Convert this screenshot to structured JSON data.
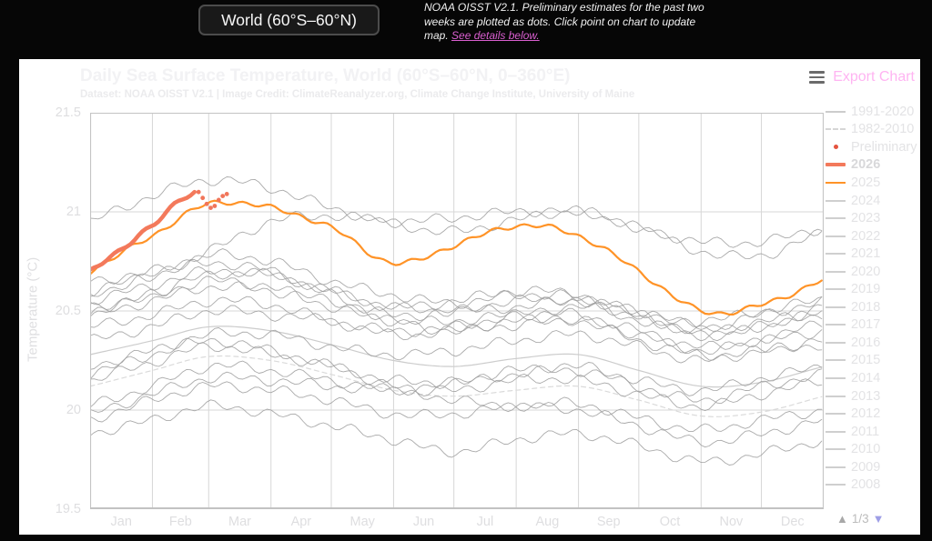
{
  "topbar": {
    "region_selector": {
      "label": "World (60°S–60°N)"
    },
    "note": {
      "text": "NOAA OISST V2.1. Preliminary estimates for the past two weeks are plotted as dots. Click point on chart to update map. ",
      "link": "See details below."
    }
  },
  "panel": {
    "export": {
      "label": "Export Chart"
    },
    "legend": {
      "pagination": {
        "up": "▲",
        "page": "1/3",
        "down": "▼"
      },
      "items": [
        {
          "label": "1991-2020",
          "swatch": "line",
          "color": "#cccccc"
        },
        {
          "label": "1982-2010",
          "swatch": "dash",
          "color": "#d6d6d6"
        },
        {
          "label": "Preliminary",
          "swatch": "dot",
          "color": "#e4533f"
        },
        {
          "label": "2026",
          "swatch": "thick",
          "color": "#f3795b",
          "bold": true
        },
        {
          "label": "2025",
          "swatch": "line",
          "color": "#ff9327"
        },
        {
          "label": "2024",
          "swatch": "line",
          "color": "#cfcfcf"
        },
        {
          "label": "2023",
          "swatch": "line",
          "color": "#cfcfcf"
        },
        {
          "label": "2022",
          "swatch": "line",
          "color": "#cfcfcf"
        },
        {
          "label": "2021",
          "swatch": "line",
          "color": "#cfcfcf"
        },
        {
          "label": "2020",
          "swatch": "line",
          "color": "#cfcfcf"
        },
        {
          "label": "2019",
          "swatch": "line",
          "color": "#cfcfcf"
        },
        {
          "label": "2018",
          "swatch": "line",
          "color": "#cfcfcf"
        },
        {
          "label": "2017",
          "swatch": "line",
          "color": "#cfcfcf"
        },
        {
          "label": "2016",
          "swatch": "line",
          "color": "#cfcfcf"
        },
        {
          "label": "2015",
          "swatch": "line",
          "color": "#cfcfcf"
        },
        {
          "label": "2014",
          "swatch": "line",
          "color": "#cfcfcf"
        },
        {
          "label": "2013",
          "swatch": "line",
          "color": "#cfcfcf"
        },
        {
          "label": "2012",
          "swatch": "line",
          "color": "#cfcfcf"
        },
        {
          "label": "2011",
          "swatch": "line",
          "color": "#cfcfcf"
        },
        {
          "label": "2010",
          "swatch": "line",
          "color": "#cfcfcf"
        },
        {
          "label": "2009",
          "swatch": "line",
          "color": "#cfcfcf"
        },
        {
          "label": "2008",
          "swatch": "line",
          "color": "#cfcfcf"
        }
      ]
    }
  },
  "chart_data": {
    "type": "line",
    "title": "Daily Sea Surface Temperature, World (60°S–60°N, 0–360°E)",
    "subtitle": "Dataset: NOAA OISST V2.1 | Image Credit: ClimateReanalyzer.org, Climate Change Institute, University of Maine",
    "ylabel": "Temperature (°C)",
    "ylim": [
      19.5,
      21.5
    ],
    "yticks": [
      "21.5",
      "21",
      "20.5",
      "20",
      "19.5"
    ],
    "x_categories": [
      "Jan",
      "Feb",
      "Mar",
      "Apr",
      "May",
      "Jun",
      "Jul",
      "Aug",
      "Sep",
      "Oct",
      "Nov",
      "Dec"
    ],
    "month_start_days": [
      0,
      31,
      59,
      90,
      120,
      151,
      181,
      212,
      243,
      273,
      304,
      334,
      365
    ],
    "days_in_year": 365,
    "grid": true,
    "legend_position": "right",
    "series": [
      {
        "name": "1982-2010",
        "type": "climatology",
        "dash": true,
        "color": "#dadada",
        "width": 1.2,
        "values": [
          20.12,
          20.2,
          20.27,
          20.25,
          20.18,
          20.1,
          20.07,
          20.1,
          20.12,
          20.05,
          19.97,
          19.99,
          20.07
        ]
      },
      {
        "name": "1991-2020",
        "type": "climatology",
        "dash": false,
        "color": "#cccccc",
        "width": 1.2,
        "values": [
          20.28,
          20.35,
          20.42,
          20.4,
          20.33,
          20.25,
          20.22,
          20.26,
          20.28,
          20.2,
          20.12,
          20.14,
          20.22
        ]
      },
      {
        "name": "2008",
        "type": "year",
        "color": "#9b9b9b",
        "values": [
          19.88,
          19.95,
          20.02,
          19.98,
          19.92,
          19.85,
          19.79,
          19.85,
          19.88,
          19.82,
          19.74,
          19.78,
          19.85
        ]
      },
      {
        "name": "2009",
        "type": "year",
        "color": "#9b9b9b",
        "values": [
          19.98,
          20.08,
          20.16,
          20.15,
          20.12,
          20.1,
          20.14,
          20.2,
          20.22,
          20.15,
          20.1,
          20.16,
          20.22
        ]
      },
      {
        "name": "2010",
        "type": "year",
        "color": "#9b9b9b",
        "values": [
          20.18,
          20.28,
          20.35,
          20.3,
          20.22,
          20.12,
          20.05,
          20.02,
          20.0,
          19.92,
          19.84,
          19.88,
          19.95
        ]
      },
      {
        "name": "2011",
        "type": "year",
        "color": "#9b9b9b",
        "values": [
          19.95,
          20.05,
          20.12,
          20.1,
          20.05,
          19.98,
          19.98,
          20.02,
          20.03,
          19.96,
          19.9,
          19.95,
          20.0
        ]
      },
      {
        "name": "2012",
        "type": "year",
        "color": "#9b9b9b",
        "values": [
          20.02,
          20.12,
          20.22,
          20.2,
          20.15,
          20.1,
          20.1,
          20.15,
          20.15,
          20.08,
          20.02,
          20.08,
          20.15
        ]
      },
      {
        "name": "2013",
        "type": "year",
        "color": "#9b9b9b",
        "values": [
          20.15,
          20.24,
          20.32,
          20.28,
          20.22,
          20.15,
          20.14,
          20.18,
          20.2,
          20.12,
          20.05,
          20.12,
          20.18
        ]
      },
      {
        "name": "2014",
        "type": "year",
        "color": "#9b9b9b",
        "values": [
          20.22,
          20.3,
          20.38,
          20.38,
          20.32,
          20.28,
          20.3,
          20.35,
          20.38,
          20.32,
          20.25,
          20.3,
          20.33
        ]
      },
      {
        "name": "2015",
        "type": "year",
        "color": "#9b9b9b",
        "values": [
          20.35,
          20.42,
          20.5,
          20.48,
          20.45,
          20.4,
          20.42,
          20.48,
          20.52,
          20.48,
          20.45,
          20.5,
          20.56
        ]
      },
      {
        "name": "2016",
        "type": "year",
        "color": "#9b9b9b",
        "values": [
          20.6,
          20.68,
          20.74,
          20.7,
          20.58,
          20.45,
          20.4,
          20.43,
          20.45,
          20.35,
          20.28,
          20.3,
          20.35
        ]
      },
      {
        "name": "2017",
        "type": "year",
        "color": "#9b9b9b",
        "values": [
          20.52,
          20.58,
          20.65,
          20.62,
          20.52,
          20.45,
          20.45,
          20.48,
          20.48,
          20.4,
          20.32,
          20.35,
          20.4
        ]
      },
      {
        "name": "2018",
        "type": "year",
        "color": "#9b9b9b",
        "values": [
          20.42,
          20.48,
          20.55,
          20.53,
          20.45,
          20.38,
          20.4,
          20.45,
          20.45,
          20.38,
          20.3,
          20.36,
          20.44
        ]
      },
      {
        "name": "2019",
        "type": "year",
        "color": "#9b9b9b",
        "values": [
          20.48,
          20.58,
          20.68,
          20.68,
          20.6,
          20.52,
          20.5,
          20.52,
          20.55,
          20.5,
          20.42,
          20.48,
          20.55
        ]
      },
      {
        "name": "2020",
        "type": "year",
        "color": "#9b9b9b",
        "values": [
          20.58,
          20.68,
          20.78,
          20.75,
          20.65,
          20.58,
          20.54,
          20.58,
          20.57,
          20.48,
          20.4,
          20.45,
          20.48
        ]
      },
      {
        "name": "2021",
        "type": "year",
        "color": "#9b9b9b",
        "values": [
          20.48,
          20.55,
          20.62,
          20.6,
          20.55,
          20.48,
          20.5,
          20.55,
          20.55,
          20.45,
          20.38,
          20.42,
          20.5
        ]
      },
      {
        "name": "2022",
        "type": "year",
        "color": "#9b9b9b",
        "values": [
          20.55,
          20.63,
          20.7,
          20.68,
          20.6,
          20.52,
          20.55,
          20.6,
          20.58,
          20.48,
          20.38,
          20.42,
          20.52
        ]
      },
      {
        "name": "2023",
        "type": "year",
        "color": "#9b9b9b",
        "values": [
          20.65,
          20.7,
          20.8,
          20.95,
          20.98,
          20.95,
          20.97,
          21.0,
          21.0,
          20.92,
          20.85,
          20.85,
          20.92
        ]
      },
      {
        "name": "2024",
        "type": "year",
        "color": "#9b9b9b",
        "values": [
          20.95,
          21.08,
          21.16,
          21.12,
          21.02,
          20.94,
          20.9,
          20.96,
          21.0,
          20.92,
          20.8,
          20.78,
          20.9
        ]
      },
      {
        "name": "2025",
        "type": "highlight",
        "color": "#ff9327",
        "width": 2.2,
        "values": [
          20.7,
          20.88,
          21.04,
          21.02,
          20.92,
          20.74,
          20.83,
          20.93,
          20.88,
          20.7,
          20.5,
          20.53,
          20.66
        ]
      },
      {
        "name": "2026",
        "type": "highlight-partial",
        "color": "#f3795b",
        "width": 4.5,
        "days": [
          0,
          8,
          16,
          24,
          31,
          38,
          45,
          52
        ],
        "values": [
          20.7,
          20.76,
          20.81,
          20.88,
          20.93,
          21.0,
          21.06,
          21.1
        ],
        "preliminary_dots": {
          "color": "#f1755a",
          "days": [
            54,
            56,
            58,
            60,
            62,
            64,
            66,
            68
          ],
          "values": [
            21.1,
            21.07,
            21.04,
            21.02,
            21.03,
            21.06,
            21.08,
            21.09
          ]
        }
      }
    ]
  }
}
